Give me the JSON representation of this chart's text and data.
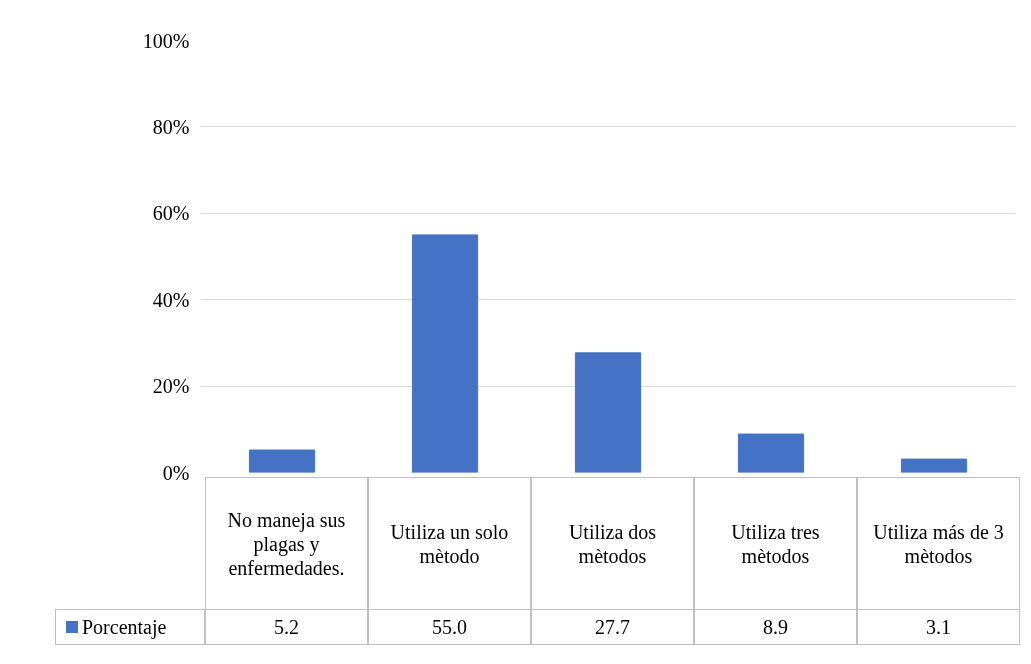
{
  "chart_data": {
    "type": "bar",
    "categories": [
      "No maneja sus plagas y enfermedades.",
      "Utiliza un solo mètodo",
      "Utiliza dos mètodos",
      "Utiliza tres mètodos",
      "Utiliza más de 3 mètodos"
    ],
    "series": [
      {
        "name": "Porcentaje",
        "color": "#4472c4",
        "values": [
          5.2,
          55.0,
          27.7,
          8.9,
          3.1
        ],
        "value_labels": [
          "5.2",
          "55.0",
          "27.7",
          "8.9",
          "3.1"
        ]
      }
    ],
    "ylim": [
      0,
      100
    ],
    "yticks": [
      {
        "value": 0,
        "label": "0%"
      },
      {
        "value": 20,
        "label": "20%"
      },
      {
        "value": 40,
        "label": "40%"
      },
      {
        "value": 60,
        "label": "60%"
      },
      {
        "value": 80,
        "label": "80%"
      },
      {
        "value": 100,
        "label": "100%"
      }
    ],
    "grid": "y"
  }
}
